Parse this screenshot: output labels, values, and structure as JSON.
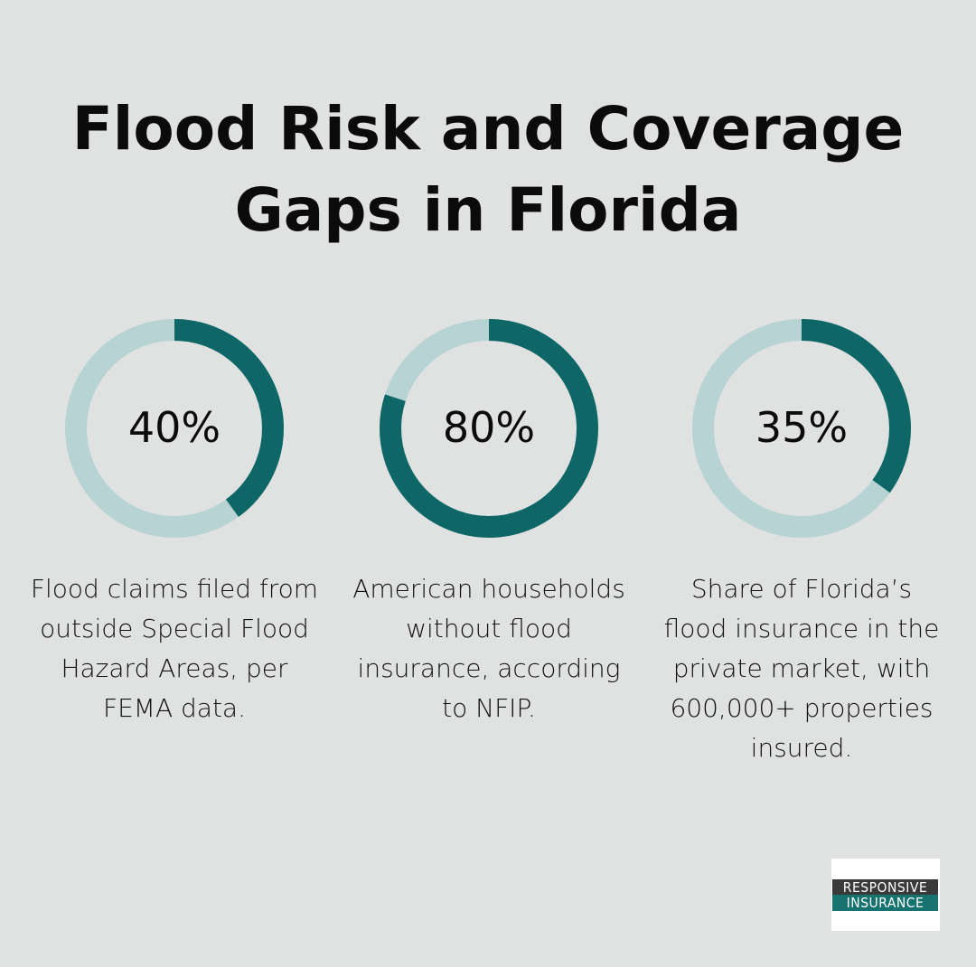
{
  "title_line1": "Flood Risk and Coverage",
  "title_line2": "Gaps in Florida",
  "colors": {
    "background": "#e0e2e1",
    "filled": "#0e6766",
    "track": "#b7d3d4"
  },
  "chart_data": {
    "type": "pie",
    "variant": "donut",
    "items": [
      {
        "value": 40,
        "label": "40%",
        "description": "Flood claims filed from outside Special Flood Hazard Areas, per FEMA data."
      },
      {
        "value": 80,
        "label": "80%",
        "description": "American households without flood insurance, according to NFIP."
      },
      {
        "value": 35,
        "label": "35%",
        "description": "Share of Florida’s flood insurance in the private market, with 600,000+ properties insured."
      }
    ]
  },
  "logo": {
    "line1": "RESPONSIVE",
    "line2": "INSURANCE"
  }
}
